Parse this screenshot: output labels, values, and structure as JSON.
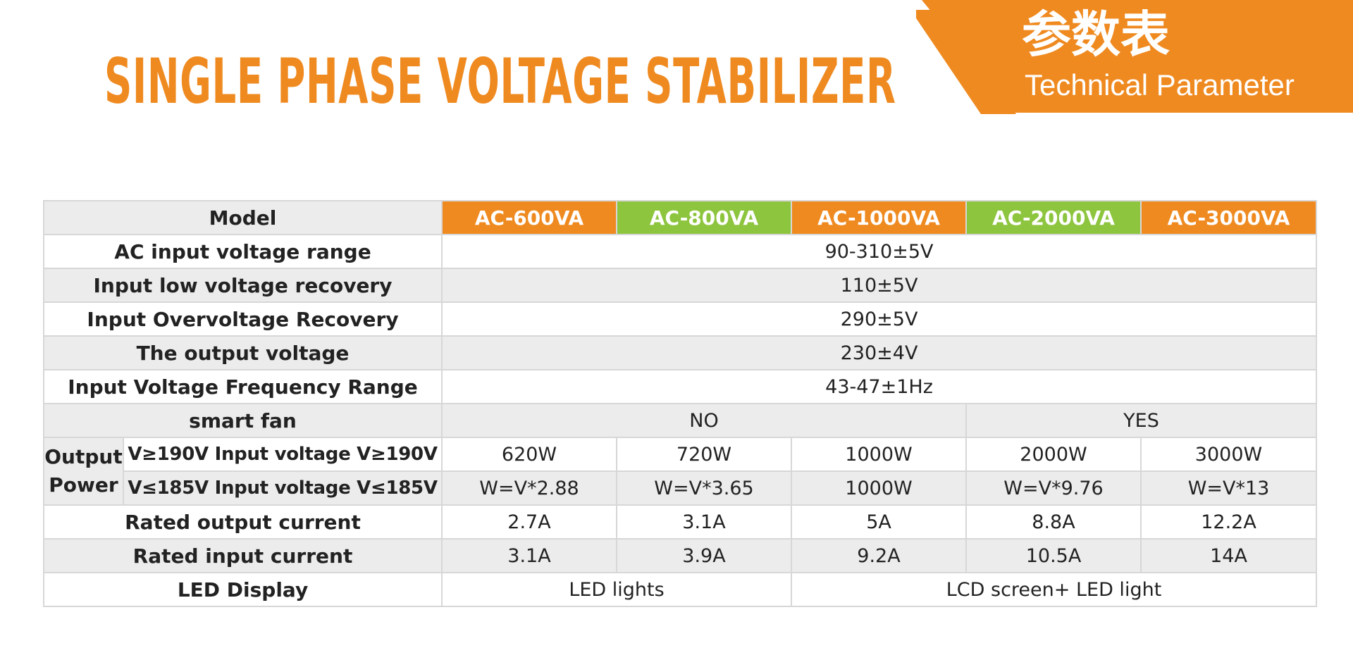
{
  "header": {
    "title": "SINGLE PHASE VOLTAGE STABILIZER",
    "banner_cn": "参数表",
    "banner_en": "Technical Parameter"
  },
  "colors": {
    "orange": "#ef8a20",
    "green": "#8dc53e",
    "row_alt": "#ececec",
    "border": "#d7d7d7"
  },
  "table": {
    "model_label": "Model",
    "models": [
      "AC-600VA",
      "AC-800VA",
      "AC-1000VA",
      "AC-2000VA",
      "AC-3000VA"
    ],
    "ac_input_range": {
      "label": "AC input voltage range",
      "value": "90-310±5V"
    },
    "low_recovery": {
      "label": "Input low voltage recovery",
      "value": "110±5V"
    },
    "over_recovery": {
      "label": "Input Overvoltage Recovery",
      "value": "290±5V"
    },
    "output_voltage": {
      "label": "The output voltage",
      "value": "230±4V"
    },
    "frequency": {
      "label": "Input Voltage Frequency Range",
      "value": "43-47±1Hz"
    },
    "smart_fan": {
      "label": "smart fan",
      "no": "NO",
      "yes": "YES"
    },
    "output_power": {
      "label": "Output Power",
      "high": {
        "label": "V≥190V Input voltage V≥190V",
        "values": [
          "620W",
          "720W",
          "1000W",
          "2000W",
          "3000W"
        ]
      },
      "low": {
        "label": "V≤185V Input voltage V≤185V",
        "values": [
          "W=V*2.88",
          "W=V*3.65",
          "1000W",
          "W=V*9.76",
          "W=V*13"
        ]
      }
    },
    "rated_output": {
      "label": "Rated output current",
      "values": [
        "2.7A",
        "3.1A",
        "5A",
        "8.8A",
        "12.2A"
      ]
    },
    "rated_input": {
      "label": "Rated input current",
      "values": [
        "3.1A",
        "3.9A",
        "9.2A",
        "10.5A",
        "14A"
      ]
    },
    "led_display": {
      "label": "LED Display",
      "led": "LED lights",
      "lcd": "LCD screen+ LED light"
    }
  }
}
